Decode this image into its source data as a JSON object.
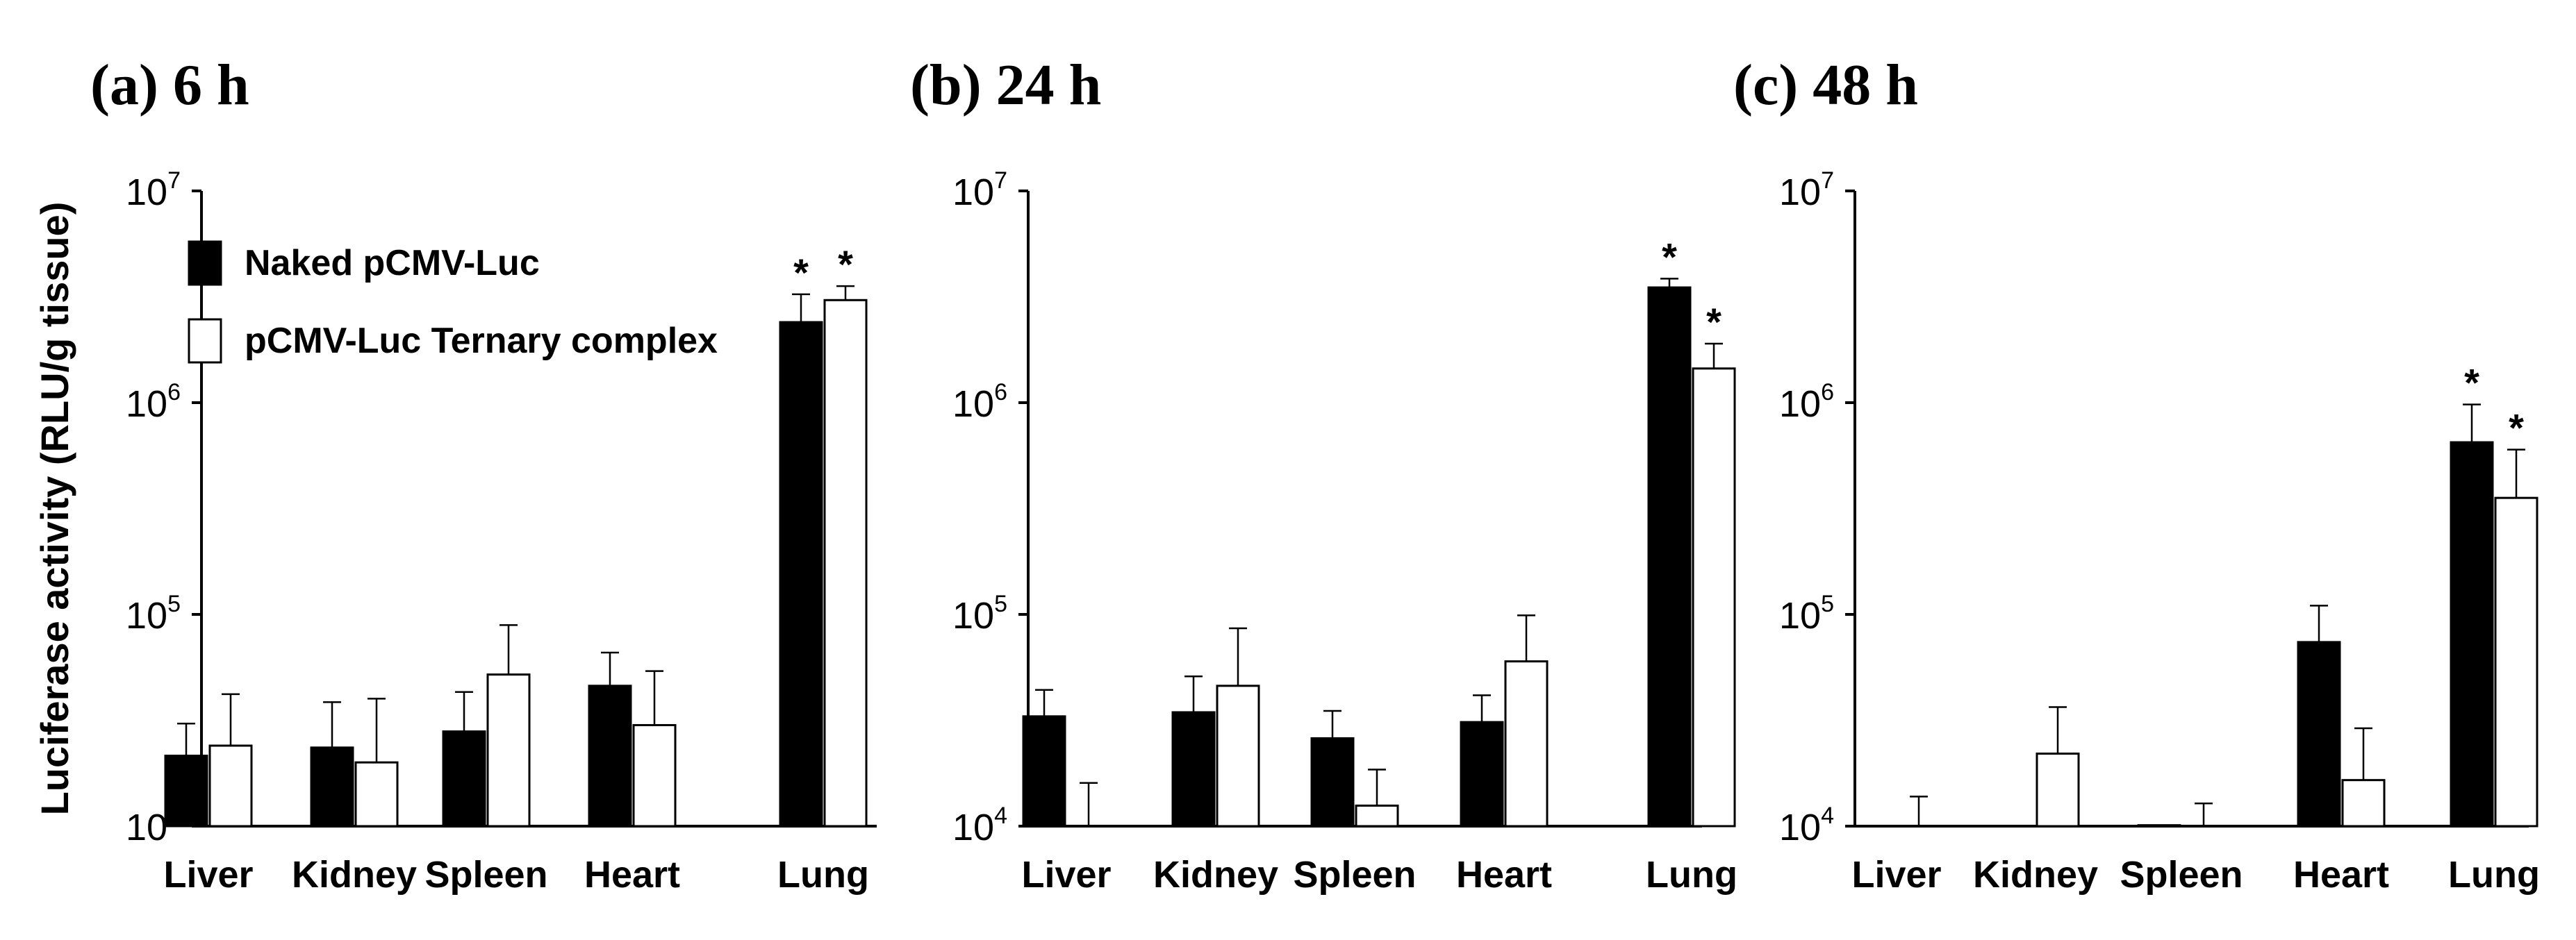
{
  "chart_data": {
    "type": "bar",
    "ylabel": "Luciferase activity (RLU/g tissue)",
    "yscale": "log",
    "ylim": [
      10000,
      10000000
    ],
    "yticks": [
      {
        "base": "10",
        "exp": "4",
        "value": 10000
      },
      {
        "base": "10",
        "exp": "5",
        "value": 100000
      },
      {
        "base": "10",
        "exp": "6",
        "value": 1000000
      },
      {
        "base": "10",
        "exp": "7",
        "value": 10000000
      }
    ],
    "legend": [
      {
        "label": "Naked pCMV-Luc",
        "color": "#000000"
      },
      {
        "label": "pCMV-Luc Ternary complex",
        "color": "#ffffff"
      }
    ],
    "significance_marker": "*",
    "panels": [
      {
        "title": "(a) 6 h",
        "categories": [
          "Liver",
          "Kidney",
          "Spleen",
          "Heart",
          "Lung"
        ],
        "series": [
          {
            "name": "Naked pCMV-Luc",
            "values": [
              21500,
              23500,
              28000,
              46000,
              2400000
            ],
            "errors": [
              30500,
              38500,
              43000,
              66000,
              3250000
            ]
          },
          {
            "name": "pCMV-Luc Ternary complex",
            "values": [
              24000,
              20000,
              52000,
              30000,
              3050000
            ],
            "errors": [
              42000,
              40000,
              89000,
              54000,
              3550000
            ]
          }
        ],
        "significant": [
          {
            "category": "Lung",
            "series": 0
          },
          {
            "category": "Lung",
            "series": 1
          }
        ]
      },
      {
        "title": "(b) 24 h",
        "categories": [
          "Liver",
          "Kidney",
          "Spleen",
          "Heart",
          "Lung"
        ],
        "series": [
          {
            "name": "Naked pCMV-Luc",
            "values": [
              33000,
              34500,
              26000,
              31000,
              3500000
            ],
            "errors": [
              44000,
              51000,
              35000,
              41500,
              3850000
            ]
          },
          {
            "name": "pCMV-Luc Ternary complex",
            "values": [
              10000,
              46000,
              12500,
              60000,
              1450000
            ],
            "errors": [
              16000,
              86000,
              18500,
              99000,
              1900000
            ]
          }
        ],
        "significant": [
          {
            "category": "Lung",
            "series": 0
          },
          {
            "category": "Lung",
            "series": 1
          }
        ]
      },
      {
        "title": "(c) 48 h",
        "categories": [
          "Liver",
          "Kidney",
          "Spleen",
          "Heart",
          "Lung"
        ],
        "series": [
          {
            "name": "Naked pCMV-Luc",
            "values": [
              10000,
              10000,
              10100,
              74000,
              650000
            ],
            "errors": [
              10000,
              10000,
              10100,
              110000,
              980000
            ]
          },
          {
            "name": "pCMV-Luc Ternary complex",
            "values": [
              10000,
              22000,
              10000,
              16500,
              355000
            ],
            "errors": [
              13800,
              36500,
              12800,
              29000,
              600000
            ]
          }
        ],
        "significant": [
          {
            "category": "Lung",
            "series": 0
          },
          {
            "category": "Lung",
            "series": 1
          }
        ]
      }
    ]
  }
}
